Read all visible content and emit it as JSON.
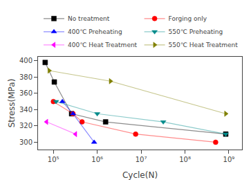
{
  "chart_data": {
    "type": "line",
    "xlabel": "Cycle(N)",
    "ylabel": "Stress(MPa)",
    "log": "x",
    "xlim": [
      44668.35921509635,
      1995262314.9688828
    ],
    "xticks": [
      {
        "value": 100000,
        "label": "10⁵"
      },
      {
        "value": 1000000,
        "label": "10⁶"
      },
      {
        "value": 10000000,
        "label": "10⁷"
      },
      {
        "value": 100000000,
        "label": "10⁸"
      },
      {
        "value": 1000000000,
        "label": "10⁹"
      }
    ],
    "ylim": [
      291,
      405
    ],
    "yticks": [
      300,
      320,
      340,
      360,
      380,
      400
    ],
    "grid": false,
    "legend": "top",
    "series": [
      {
        "name": "No treatment",
        "color": "#000000",
        "marker": "square",
        "x": [
          65000,
          105000,
          260000,
          1550000,
          850000000
        ],
        "values": [
          398,
          374,
          335,
          325,
          310
        ]
      },
      {
        "name": "Forging only",
        "color": "#ff0000",
        "marker": "circle",
        "x": [
          100000,
          280000,
          450000,
          7500000,
          500000000
        ],
        "values": [
          350,
          335,
          325,
          310,
          300
        ]
      },
      {
        "name": "400℃ Preheating",
        "color": "#0000ff",
        "marker": "triangle-up",
        "x": [
          160000,
          280000,
          850000
        ],
        "values": [
          350,
          335,
          300
        ]
      },
      {
        "name": "550℃ Preheating",
        "color": "#008b8b",
        "marker": "triangle-down",
        "x": [
          115000,
          1000000,
          32000000,
          850000000
        ],
        "values": [
          350,
          335,
          325,
          310
        ]
      },
      {
        "name": "400℃ Heat Treatment",
        "color": "#ff00ff",
        "marker": "triangle-left",
        "x": [
          70000,
          320000
        ],
        "values": [
          325,
          310
        ]
      },
      {
        "name": "550℃ Heat Treatment",
        "color": "#808000",
        "marker": "triangle-right",
        "x": [
          80000,
          2000000,
          850000000
        ],
        "values": [
          388,
          375,
          335
        ]
      }
    ]
  }
}
